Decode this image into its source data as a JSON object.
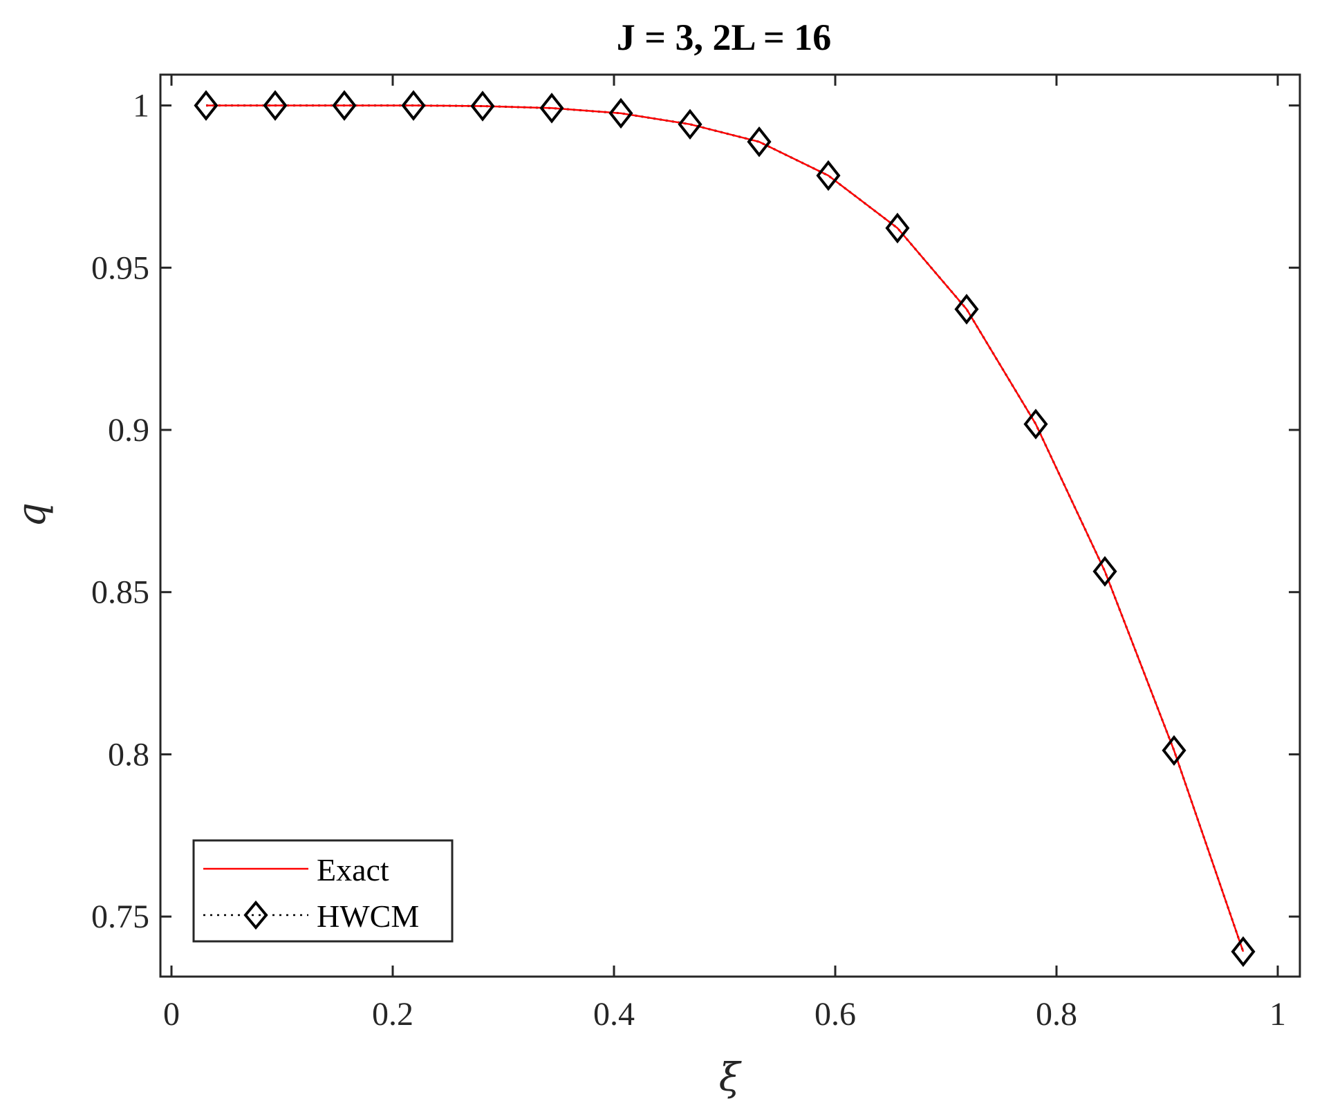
{
  "chart_data": {
    "type": "line",
    "title": "J = 3, 2L = 16",
    "xlabel": "ξ",
    "ylabel": "q",
    "xlim": [
      -0.01,
      1.02
    ],
    "ylim": [
      0.7315,
      1.0095
    ],
    "xticks": [
      0,
      0.2,
      0.4,
      0.6,
      0.8,
      1
    ],
    "xtick_labels": [
      "0",
      "0.2",
      "0.4",
      "0.6",
      "0.8",
      "1"
    ],
    "yticks": [
      0.75,
      0.8,
      0.85,
      0.9,
      0.95,
      1
    ],
    "ytick_labels": [
      "0.75",
      "0.8",
      "0.85",
      "0.9",
      "0.95",
      "1"
    ],
    "grid": false,
    "legend_position": "bottom-left",
    "x": [
      0.03125,
      0.09375,
      0.15625,
      0.21875,
      0.28125,
      0.34375,
      0.40625,
      0.46875,
      0.53125,
      0.59375,
      0.65625,
      0.71875,
      0.78125,
      0.84375,
      0.90625,
      0.96875
    ],
    "series": [
      {
        "name": "Exact",
        "color": "#ff0000",
        "line_style": "solid",
        "marker": "none",
        "values": [
          1.0,
          1.0,
          1.0,
          1.0,
          0.9998,
          0.9992,
          0.9976,
          0.9942,
          0.9888,
          0.9784,
          0.9622,
          0.9372,
          0.9018,
          0.8564,
          0.8012,
          0.7392
        ]
      },
      {
        "name": "HWCM",
        "color": "#000000",
        "line_style": "dotted",
        "marker": "diamond",
        "values": [
          1.0,
          1.0,
          1.0,
          1.0,
          0.9998,
          0.9992,
          0.9976,
          0.9942,
          0.9888,
          0.9784,
          0.9622,
          0.9372,
          0.9018,
          0.8564,
          0.8012,
          0.7392
        ]
      }
    ]
  }
}
